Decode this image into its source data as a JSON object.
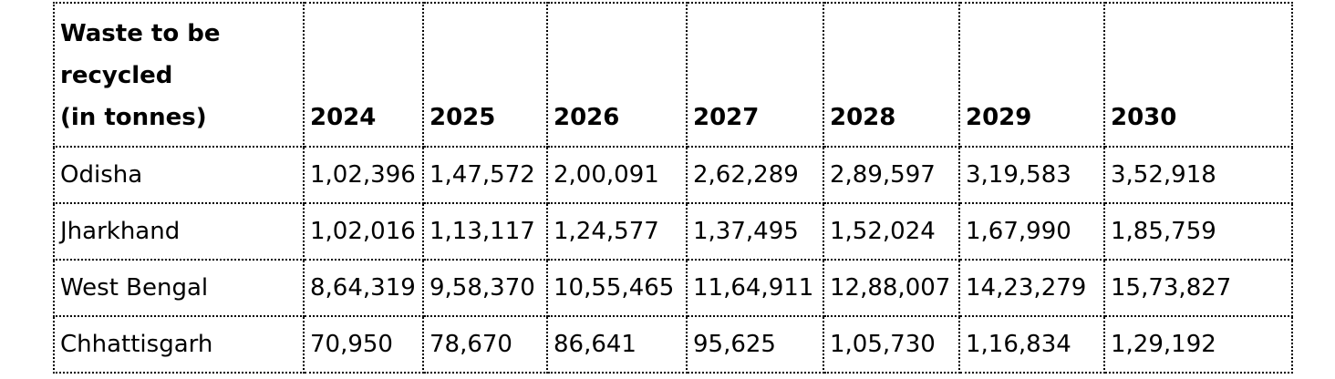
{
  "table": {
    "corner_header": [
      "Waste to be",
      "recycled",
      "(in tonnes)"
    ],
    "years": [
      "2024",
      "2025",
      "2026",
      "2027",
      "2028",
      "2029",
      "2030"
    ],
    "rows": [
      {
        "state": "Odisha",
        "values": [
          "1,02,396",
          "1,47,572",
          "2,00,091",
          "2,62,289",
          "2,89,597",
          "3,19,583",
          "3,52,918"
        ]
      },
      {
        "state": "Jharkhand",
        "values": [
          "1,02,016",
          "1,13,117",
          "1,24,577",
          "1,37,495",
          "1,52,024",
          "1,67,990",
          "1,85,759"
        ]
      },
      {
        "state": "West Bengal",
        "values": [
          "8,64,319",
          "9,58,370",
          "10,55,465",
          "11,64,911",
          "12,88,007",
          "14,23,279",
          "15,73,827"
        ]
      },
      {
        "state": "Chhattisgarh",
        "values": [
          "70,950",
          "78,670",
          "86,641",
          "95,625",
          "1,05,730",
          "1,16,834",
          "1,29,192"
        ]
      }
    ]
  }
}
